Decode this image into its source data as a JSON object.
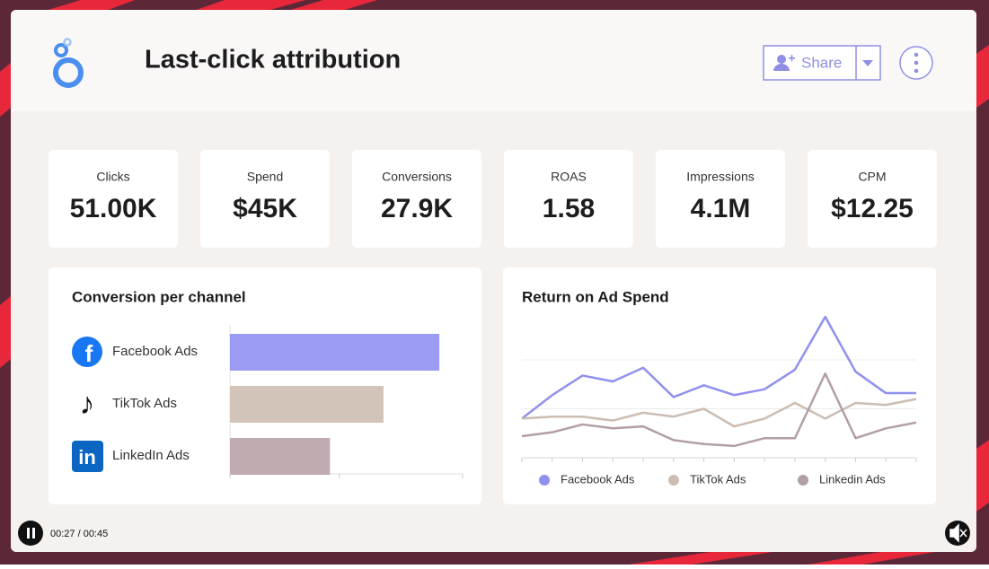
{
  "header": {
    "title": "Last-click attribution",
    "share": "Share"
  },
  "kpis": [
    {
      "label": "Clicks",
      "value": "51.00K"
    },
    {
      "label": "Spend",
      "value": "$45K"
    },
    {
      "label": "Conversions",
      "value": "27.9K"
    },
    {
      "label": "ROAS",
      "value": "1.58"
    },
    {
      "label": "Impressions",
      "value": "4.1M"
    },
    {
      "label": "CPM",
      "value": "$12.25"
    }
  ],
  "chart_data": [
    {
      "type": "bar",
      "orientation": "horizontal",
      "title": "Conversion per channel",
      "categories": [
        "Facebook Ads",
        "TikTok Ads",
        "LinkedIn Ads"
      ],
      "values": [
        90,
        66,
        43
      ],
      "colors": [
        "#9b9bf4",
        "#d3c4b9",
        "#c0abb0"
      ],
      "xlim": [
        0,
        100
      ],
      "xticks": [
        0,
        47,
        100
      ]
    },
    {
      "type": "line",
      "title": "Return on Ad Spend",
      "categories": [
        null,
        null,
        null,
        null,
        null,
        null,
        null,
        null,
        null,
        null,
        null,
        null,
        null,
        null
      ],
      "series": [
        {
          "name": "Facebook Ads",
          "color": "#9090ee",
          "values": [
            20,
            32,
            42,
            39,
            46,
            31,
            37,
            32,
            35,
            45,
            72,
            44,
            33,
            33
          ]
        },
        {
          "name": "TikTok Ads",
          "color": "#cbbdb2",
          "values": [
            20,
            21,
            21,
            19,
            23,
            21,
            25,
            16,
            20,
            28,
            20,
            28,
            27,
            30
          ]
        },
        {
          "name": "Linkedin Ads",
          "color": "#b29ea6",
          "values": [
            11,
            13,
            17,
            15,
            16,
            9,
            7,
            6,
            10,
            10,
            43,
            10,
            15,
            18
          ]
        }
      ],
      "ylim": [
        0,
        75
      ],
      "yticks": [
        0,
        25,
        50
      ],
      "grid": true,
      "legend": "bottom"
    }
  ],
  "player": {
    "time": "00:27 / 00:45"
  }
}
